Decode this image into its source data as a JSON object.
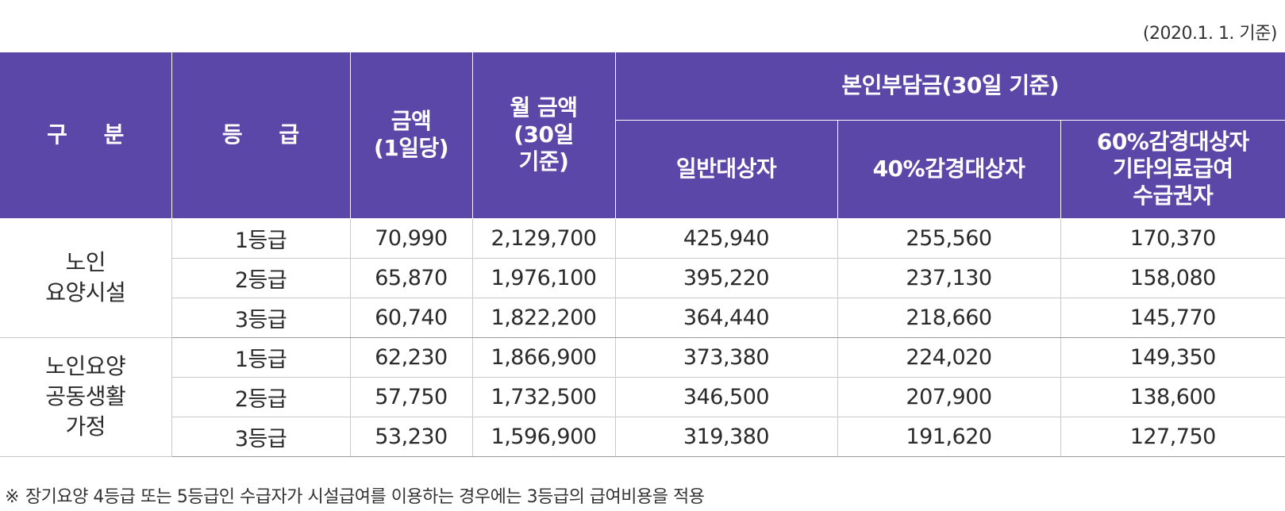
{
  "date_note": "(2020.1. 1. 기준)",
  "header": {
    "category": "구 분",
    "grade": "등 급",
    "daily_amount": [
      "금액",
      "(1일당)"
    ],
    "monthly_amount": [
      "월 금액",
      "(30일",
      "기준)"
    ],
    "copay_group": "본인부담금(30일 기준)",
    "copay_general": "일반대상자",
    "copay_40": "40%감경대상자",
    "copay_60": [
      "60%감경대상자",
      "기타의료급여",
      "수급권자"
    ]
  },
  "groups": [
    {
      "name_lines": [
        "노인",
        "요양시설"
      ],
      "rows": [
        {
          "grade": "1등급",
          "daily": "70,990",
          "monthly": "2,129,700",
          "general": "425,940",
          "reduced40": "255,560",
          "reduced60": "170,370"
        },
        {
          "grade": "2등급",
          "daily": "65,870",
          "monthly": "1,976,100",
          "general": "395,220",
          "reduced40": "237,130",
          "reduced60": "158,080"
        },
        {
          "grade": "3등급",
          "daily": "60,740",
          "monthly": "1,822,200",
          "general": "364,440",
          "reduced40": "218,660",
          "reduced60": "145,770"
        }
      ]
    },
    {
      "name_lines": [
        "노인요양",
        "공동생활",
        "가정"
      ],
      "rows": [
        {
          "grade": "1등급",
          "daily": "62,230",
          "monthly": "1,866,900",
          "general": "373,380",
          "reduced40": "224,020",
          "reduced60": "149,350"
        },
        {
          "grade": "2등급",
          "daily": "57,750",
          "monthly": "1,732,500",
          "general": "346,500",
          "reduced40": "207,900",
          "reduced60": "138,600"
        },
        {
          "grade": "3등급",
          "daily": "53,230",
          "monthly": "1,596,900",
          "general": "319,380",
          "reduced40": "191,620",
          "reduced60": "127,750"
        }
      ]
    }
  ],
  "footnote": {
    "mark": "※",
    "text": "장기요양 4등급 또는 5등급인 수급자가 시설급여를 이용하는 경우에는 3등급의 급여비용을 적용"
  }
}
